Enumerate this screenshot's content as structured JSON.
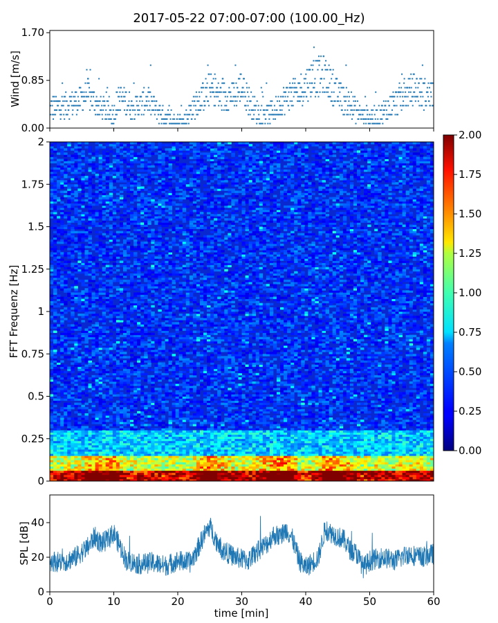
{
  "figure": {
    "title": "2017-05-22 07:00-07:00 (100.00_Hz)"
  },
  "chart_data": [
    {
      "type": "scatter",
      "panel": "wind",
      "ylabel": "Wind [m/s]",
      "xlim": [
        0,
        60
      ],
      "ylim": [
        0,
        1.74
      ],
      "yticks": [
        0.0,
        0.85,
        1.7
      ],
      "ytick_labels": [
        "0.00",
        "0.85",
        "1.70"
      ],
      "series_color": "#1f77b4",
      "wind_profile": {
        "x": [
          0,
          2,
          4,
          6,
          8,
          10,
          11,
          13,
          15,
          17,
          19,
          21,
          23,
          25,
          27,
          29,
          30,
          31,
          33,
          35,
          37,
          39,
          41,
          43,
          45,
          47,
          49,
          51,
          53,
          55,
          57,
          59,
          60
        ],
        "y": [
          0.35,
          0.4,
          0.45,
          0.6,
          0.35,
          0.25,
          0.55,
          0.35,
          0.5,
          0.3,
          0.1,
          0.12,
          0.45,
          0.7,
          0.55,
          0.6,
          0.75,
          0.5,
          0.2,
          0.3,
          0.55,
          0.65,
          0.9,
          0.95,
          0.6,
          0.4,
          0.2,
          0.2,
          0.35,
          0.55,
          0.7,
          0.6,
          0.65
        ]
      }
    },
    {
      "type": "heatmap",
      "panel": "spectrogram",
      "ylabel": "FFT Frequenz [Hz]",
      "xlim": [
        0,
        60
      ],
      "ylim": [
        0,
        2
      ],
      "yticks": [
        0,
        0.25,
        0.5,
        0.75,
        1,
        1.25,
        1.5,
        1.75,
        2
      ],
      "ytick_labels": [
        "0",
        "0.25",
        "0.5",
        "0.75",
        "1",
        "1.25",
        "1.5",
        "1.75",
        "2"
      ],
      "colormap": "jet",
      "colorbar": {
        "vmin": 0.0,
        "vmax": 2.0,
        "ticks": [
          "0.00",
          "0.25",
          "0.50",
          "0.75",
          "1.00",
          "1.25",
          "1.50",
          "1.75",
          "2.00"
        ]
      }
    },
    {
      "type": "line",
      "panel": "spl",
      "ylabel": "SPL [dB]",
      "xlabel": "time [min]",
      "xlim": [
        0,
        60
      ],
      "ylim": [
        0,
        56
      ],
      "yticks": [
        0,
        20,
        40
      ],
      "ytick_labels": [
        "0",
        "20",
        "40"
      ],
      "xticks": [
        0,
        10,
        20,
        30,
        40,
        50,
        60
      ],
      "xtick_labels": [
        "0",
        "10",
        "20",
        "30",
        "40",
        "50",
        "60"
      ],
      "series_color": "#1f77b4",
      "spl_profile": {
        "x": [
          0,
          2,
          4,
          6,
          7,
          8,
          9,
          10,
          11,
          12,
          14,
          16,
          18,
          20,
          22,
          23,
          24,
          25,
          26,
          27,
          29,
          31,
          32,
          34,
          35,
          36,
          37,
          38,
          39,
          40,
          42,
          43,
          44,
          46,
          47,
          48,
          49,
          50,
          52,
          54,
          56,
          58,
          60
        ],
        "y": [
          18,
          17,
          20,
          26,
          32,
          28,
          30,
          34,
          26,
          18,
          16,
          17,
          15,
          18,
          17,
          24,
          32,
          38,
          30,
          24,
          20,
          18,
          22,
          28,
          33,
          32,
          36,
          30,
          18,
          14,
          20,
          36,
          34,
          30,
          24,
          22,
          14,
          18,
          20,
          18,
          22,
          20,
          22
        ]
      }
    }
  ]
}
